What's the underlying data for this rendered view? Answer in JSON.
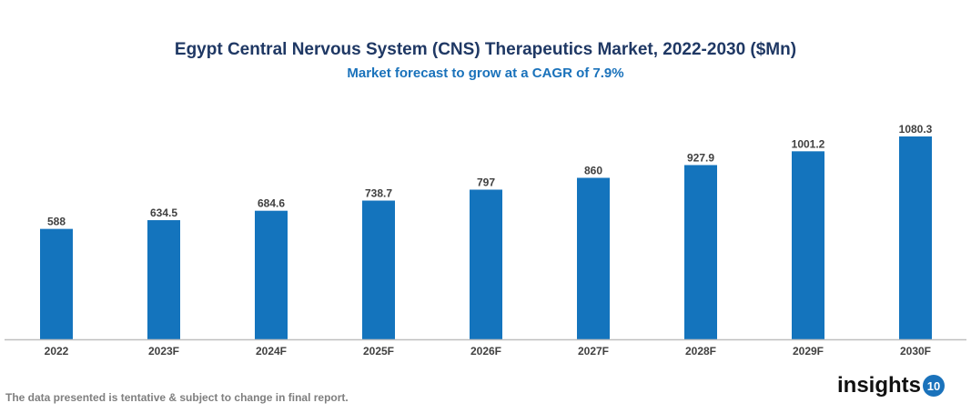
{
  "chart_data": {
    "type": "bar",
    "title": "Egypt Central Nervous System (CNS) Therapeutics Market, 2022-2030 ($Mn)",
    "subtitle": "Market forecast to grow at a CAGR of 7.9%",
    "categories": [
      "2022",
      "2023F",
      "2024F",
      "2025F",
      "2026F",
      "2027F",
      "2028F",
      "2029F",
      "2030F"
    ],
    "values": [
      588,
      634.5,
      684.6,
      738.7,
      797,
      860,
      927.9,
      1001.2,
      1080.3
    ],
    "value_labels": [
      "588",
      "634.5",
      "684.6",
      "738.7",
      "797",
      "860",
      "927.9",
      "1001.2",
      "1080.3"
    ],
    "xlabel": "",
    "ylabel": "",
    "ylim": [
      0,
      1080.3
    ],
    "grid": false,
    "legend": "none",
    "bar_color": "#1474bd"
  },
  "footnote": "The data presented is tentative & subject to change in final report.",
  "logo": {
    "text": "insights",
    "badge": "10"
  }
}
